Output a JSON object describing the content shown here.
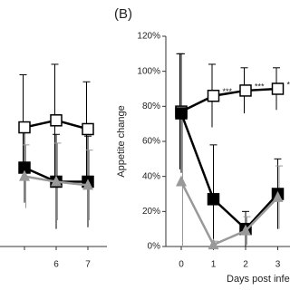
{
  "chart_data": [
    {
      "type": "line",
      "categories": [
        null,
        "6",
        "7"
      ],
      "ylim": [
        0,
        120
      ],
      "series": [
        {
          "name": "open",
          "color": "#000000",
          "marker": "square-open",
          "values": [
            68,
            72,
            67
          ],
          "errors": [
            30,
            32,
            27
          ]
        },
        {
          "name": "filled",
          "color": "#000000",
          "marker": "square-filled",
          "values": [
            45,
            37,
            37
          ],
          "errors": [
            20,
            27,
            26
          ]
        },
        {
          "name": "gray",
          "color": "#999999",
          "marker": "triangle",
          "values": [
            40,
            37,
            35
          ],
          "errors": [
            18,
            22,
            20
          ]
        }
      ]
    },
    {
      "type": "line",
      "panel_label": "(B)",
      "y_label": "Appetite change",
      "x_label": "Days post infection",
      "categories": [
        "0",
        "1",
        "2",
        "3"
      ],
      "ylim": [
        0,
        120
      ],
      "yticks": [
        {
          "value": 0,
          "label": "0%"
        },
        {
          "value": 20,
          "label": "20%"
        },
        {
          "value": 40,
          "label": "40%"
        },
        {
          "value": 60,
          "label": "60%"
        },
        {
          "value": 80,
          "label": "80%"
        },
        {
          "value": 100,
          "label": "100%"
        },
        {
          "value": 120,
          "label": "120%"
        }
      ],
      "annotations": [
        {
          "category": 1,
          "text": "***"
        },
        {
          "category": 2,
          "text": "***"
        },
        {
          "category": 3,
          "text": "***"
        }
      ],
      "series": [
        {
          "name": "open",
          "color": "#000000",
          "marker": "square-open",
          "values": [
            77,
            86,
            89,
            90
          ],
          "errors": [
            33,
            18,
            13,
            12
          ]
        },
        {
          "name": "filled",
          "color": "#000000",
          "marker": "square-filled",
          "values": [
            76,
            27,
            10,
            30
          ],
          "errors": [
            34,
            31,
            10,
            20
          ]
        },
        {
          "name": "gray",
          "color": "#999999",
          "marker": "triangle",
          "values": [
            37,
            1,
            9,
            28
          ],
          "errors": [
            37,
            2,
            8,
            18
          ]
        }
      ]
    }
  ]
}
